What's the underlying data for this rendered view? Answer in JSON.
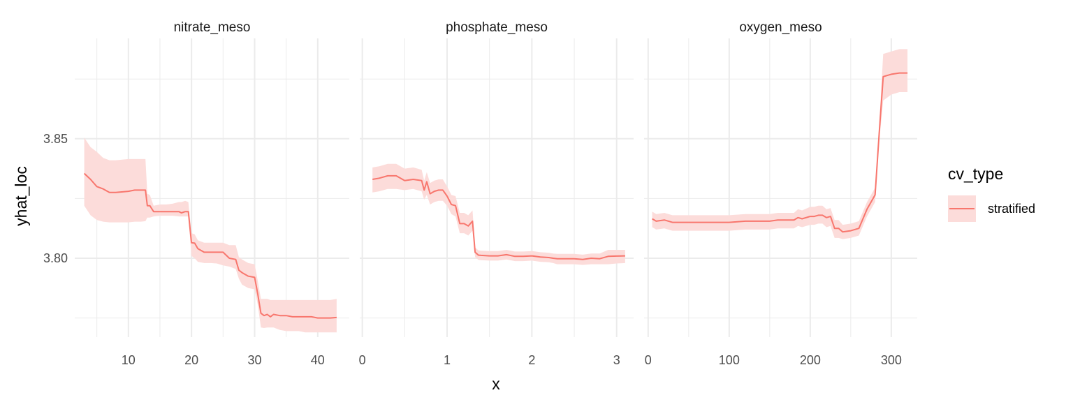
{
  "chart_data": {
    "type": "line",
    "xlabel": "x",
    "ylabel": "yhat_loc",
    "y_ticks": [
      3.8,
      3.85
    ],
    "y_tick_labels": [
      "3.80",
      "3.85"
    ],
    "ylim": [
      3.767,
      3.892
    ],
    "legend": {
      "title": "cv_type",
      "placement": "right",
      "entries": [
        "stratified"
      ]
    },
    "colors": {
      "line": "#f8766d",
      "ribbon": "#fcdcda"
    },
    "grid": true,
    "panels": [
      {
        "title": "nitrate_meso",
        "xlim": [
          1.5,
          45
        ],
        "x_ticks": [
          10,
          20,
          30,
          40
        ],
        "x_tick_labels": [
          "10",
          "20",
          "30",
          "40"
        ],
        "series": [
          {
            "name": "stratified",
            "x": [
              3,
              4,
              5,
              6,
              7,
              8,
              10,
              11,
              12,
              12.7,
              13,
              13.4,
              14,
              15,
              16,
              17,
              18,
              18.4,
              19,
              19.5,
              20,
              20.5,
              21,
              22,
              23,
              24,
              25,
              26,
              27,
              27.5,
              28,
              29,
              30,
              30.5,
              31,
              31.5,
              32,
              32.5,
              33,
              34,
              35,
              36,
              37,
              38,
              39,
              40,
              41,
              42,
              43
            ],
            "y": [
              3.8355,
              3.833,
              3.83,
              3.829,
              3.8275,
              3.8275,
              3.828,
              3.8285,
              3.8285,
              3.8285,
              3.822,
              3.822,
              3.8195,
              3.8195,
              3.8195,
              3.8195,
              3.8195,
              3.819,
              3.8195,
              3.8195,
              3.8065,
              3.8063,
              3.804,
              3.8025,
              3.8025,
              3.8025,
              3.8025,
              3.8,
              3.7995,
              3.795,
              3.794,
              3.7925,
              3.792,
              3.785,
              3.777,
              3.776,
              3.7765,
              3.7755,
              3.7765,
              3.776,
              3.776,
              3.7755,
              3.7755,
              3.7755,
              3.7755,
              3.775,
              3.775,
              3.775,
              3.7752
            ],
            "lower": [
              3.822,
              3.818,
              3.816,
              3.8153,
              3.815,
              3.815,
              3.815,
              3.8153,
              3.8153,
              3.8155,
              3.817,
              3.817,
              3.8175,
              3.8178,
              3.8178,
              3.8178,
              3.8175,
              3.8175,
              3.8175,
              3.8175,
              3.801,
              3.8,
              3.7985,
              3.798,
              3.798,
              3.7978,
              3.797,
              3.7965,
              3.7955,
              3.7915,
              3.789,
              3.7875,
              3.787,
              3.7805,
              3.771,
              3.7708,
              3.771,
              3.771,
              3.771,
              3.77,
              3.7695,
              3.7695,
              3.7695,
              3.769,
              3.769,
              3.769,
              3.769,
              3.769,
              3.769
            ],
            "upper": [
              3.8505,
              3.8465,
              3.8445,
              3.842,
              3.841,
              3.841,
              3.8415,
              3.8415,
              3.8415,
              3.8415,
              3.827,
              3.8265,
              3.822,
              3.8225,
              3.8225,
              3.8228,
              3.8235,
              3.8235,
              3.824,
              3.8235,
              3.8105,
              3.81,
              3.8075,
              3.8065,
              3.8065,
              3.8065,
              3.8065,
              3.8055,
              3.8055,
              3.8005,
              3.7995,
              3.798,
              3.7975,
              3.7905,
              3.783,
              3.783,
              3.783,
              3.7825,
              3.7825,
              3.7825,
              3.7825,
              3.7825,
              3.7825,
              3.7825,
              3.7825,
              3.7825,
              3.7825,
              3.7825,
              3.783
            ]
          }
        ]
      },
      {
        "title": "phosphate_meso",
        "xlim": [
          -0.03,
          3.2
        ],
        "x_ticks": [
          0,
          1,
          2,
          3
        ],
        "x_tick_labels": [
          "0",
          "1",
          "2",
          "3"
        ],
        "series": [
          {
            "name": "stratified",
            "x": [
              0.12,
              0.2,
              0.3,
              0.4,
              0.5,
              0.6,
              0.7,
              0.73,
              0.76,
              0.8,
              0.85,
              0.9,
              0.95,
              1.0,
              1.05,
              1.1,
              1.15,
              1.2,
              1.25,
              1.3,
              1.33,
              1.37,
              1.4,
              1.5,
              1.6,
              1.7,
              1.8,
              1.9,
              2.0,
              2.1,
              2.2,
              2.25,
              2.3,
              2.4,
              2.5,
              2.6,
              2.7,
              2.8,
              2.9,
              3.0,
              3.1
            ],
            "y": [
              3.833,
              3.8335,
              3.8345,
              3.8345,
              3.8325,
              3.833,
              3.8325,
              3.8285,
              3.832,
              3.827,
              3.828,
              3.8285,
              3.8285,
              3.826,
              3.8225,
              3.822,
              3.8145,
              3.8145,
              3.8135,
              3.8155,
              3.8025,
              3.8013,
              3.8012,
              3.801,
              3.801,
              3.8015,
              3.8008,
              3.8008,
              3.801,
              3.8005,
              3.8003,
              3.8,
              3.7998,
              3.7998,
              3.7998,
              3.7995,
              3.8,
              3.7998,
              3.8008,
              3.8009,
              3.801
            ],
            "lower": [
              3.8275,
              3.828,
              3.829,
              3.829,
              3.8285,
              3.829,
              3.828,
              3.8245,
              3.8265,
              3.8225,
              3.8235,
              3.824,
              3.824,
              3.822,
              3.8185,
              3.8175,
              3.8105,
              3.8105,
              3.8095,
              3.8115,
              3.8005,
              3.7993,
              3.7992,
              3.799,
              3.799,
              3.7995,
              3.7988,
              3.7988,
              3.799,
              3.7985,
              3.7983,
              3.798,
              3.7975,
              3.7975,
              3.7975,
              3.7972,
              3.7975,
              3.7975,
              3.7975,
              3.7978,
              3.798
            ],
            "upper": [
              3.838,
              3.8385,
              3.8395,
              3.8395,
              3.8375,
              3.838,
              3.837,
              3.8325,
              3.836,
              3.8315,
              3.8325,
              3.833,
              3.833,
              3.83,
              3.8265,
              3.826,
              3.819,
              3.819,
              3.818,
              3.82,
              3.8045,
              3.8033,
              3.8032,
              3.803,
              3.803,
              3.8035,
              3.8028,
              3.8028,
              3.803,
              3.8025,
              3.8023,
              3.802,
              3.8018,
              3.8018,
              3.8018,
              3.8015,
              3.802,
              3.802,
              3.8035,
              3.8035,
              3.8035
            ]
          }
        ]
      },
      {
        "title": "oxygen_meso",
        "xlim": [
          -5,
          332
        ],
        "x_ticks": [
          0,
          100,
          200,
          300
        ],
        "x_tick_labels": [
          "0",
          "100",
          "200",
          "300"
        ],
        "series": [
          {
            "name": "stratified",
            "x": [
              5,
              10,
              20,
              30,
              40,
              50,
              60,
              80,
              100,
              120,
              140,
              150,
              160,
              180,
              185,
              190,
              200,
              205,
              210,
              215,
              220,
              225,
              230,
              235,
              240,
              250,
              260,
              270,
              280,
              285,
              290,
              300,
              310,
              320
            ],
            "y": [
              3.8165,
              3.8155,
              3.816,
              3.815,
              3.815,
              3.815,
              3.815,
              3.815,
              3.815,
              3.8155,
              3.8155,
              3.8155,
              3.816,
              3.816,
              3.817,
              3.8165,
              3.8175,
              3.8175,
              3.818,
              3.818,
              3.817,
              3.8175,
              3.8125,
              3.8125,
              3.811,
              3.8115,
              3.8125,
              3.8205,
              3.8265,
              3.852,
              3.876,
              3.877,
              3.8775,
              3.8775
            ],
            "lower": [
              3.813,
              3.812,
              3.8125,
              3.8115,
              3.8115,
              3.8115,
              3.8115,
              3.8115,
              3.8115,
              3.812,
              3.812,
              3.812,
              3.8125,
              3.8125,
              3.8135,
              3.813,
              3.814,
              3.814,
              3.8145,
              3.8145,
              3.813,
              3.8135,
              3.8085,
              3.8085,
              3.808,
              3.8085,
              3.8095,
              3.8175,
              3.8235,
              3.8485,
              3.866,
              3.8685,
              3.8695,
              3.8695
            ],
            "upper": [
              3.8195,
              3.8185,
              3.819,
              3.818,
              3.818,
              3.818,
              3.818,
              3.818,
              3.818,
              3.8185,
              3.8185,
              3.8185,
              3.819,
              3.819,
              3.8205,
              3.82,
              3.8215,
              3.8215,
              3.822,
              3.822,
              3.8205,
              3.821,
              3.816,
              3.816,
              3.814,
              3.8145,
              3.8155,
              3.8235,
              3.8295,
              3.8555,
              3.8855,
              3.8865,
              3.8875,
              3.8875
            ]
          }
        ]
      }
    ]
  }
}
